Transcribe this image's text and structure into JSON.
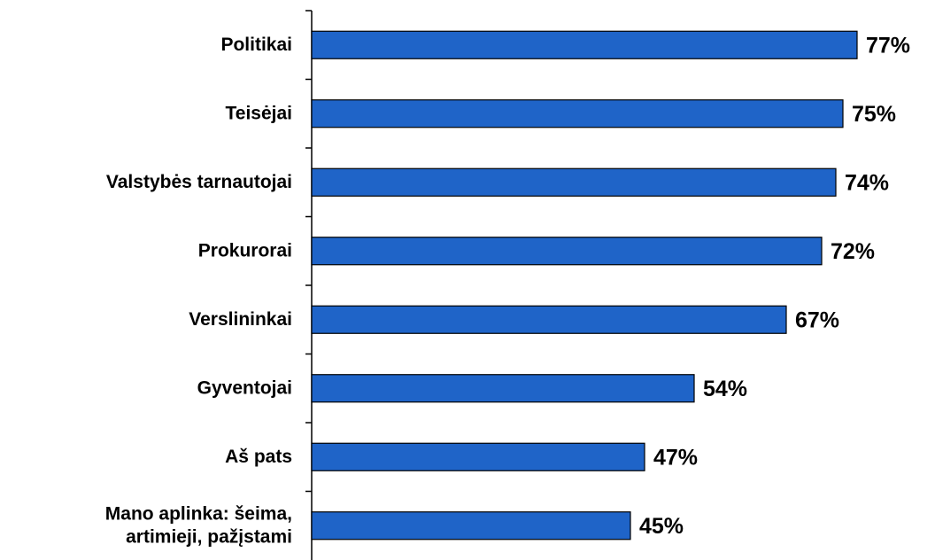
{
  "chart_data": {
    "type": "barh",
    "categories": [
      "Politikai",
      "Teisėjai",
      "Valstybės tarnautojai",
      "Prokurorai",
      "Verslininkai",
      "Gyventojai",
      "Aš pats",
      "Mano aplinka:  šeima,\nartimieji, pažįstami"
    ],
    "values": [
      77,
      75,
      74,
      72,
      67,
      54,
      47,
      45
    ],
    "value_labels": [
      "77%",
      "75%",
      "74%",
      "72%",
      "67%",
      "54%",
      "47%",
      "45%"
    ],
    "color": "#1f64c8",
    "xlim": [
      0,
      100
    ]
  }
}
